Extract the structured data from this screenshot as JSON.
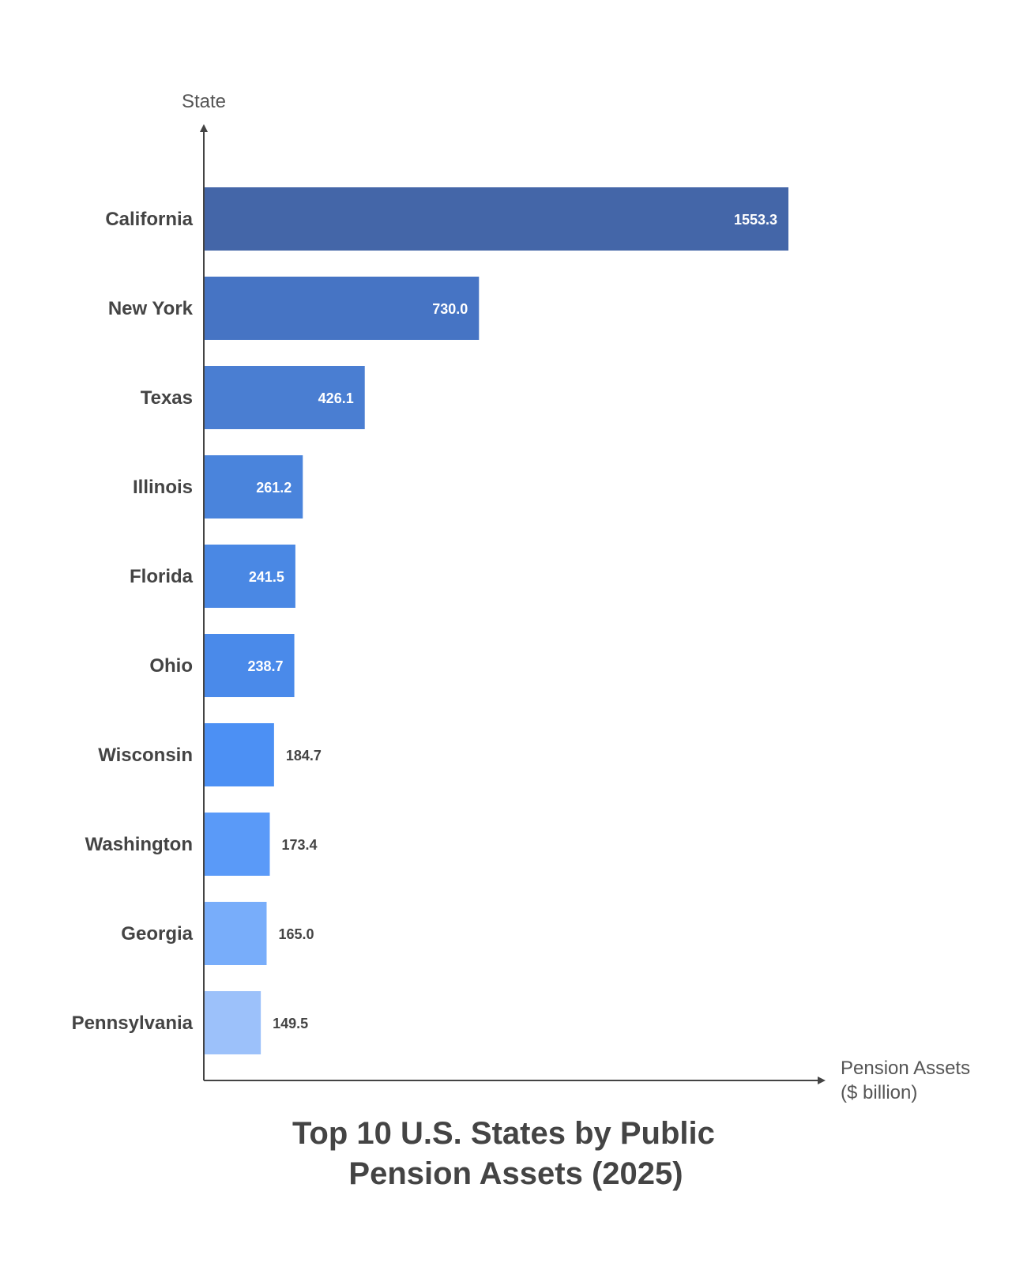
{
  "chart_data": {
    "type": "bar",
    "orientation": "horizontal",
    "title": "Top 10 U.S. States by Public Pension Assets (2025)",
    "title_lines": [
      "Top 10 U.S. States by Public",
      "Pension Assets (2025)"
    ],
    "ylabel": "State",
    "xlabel": "Pension Assets ($ billion)",
    "xlabel_lines": [
      "Pension Assets",
      "($ billion)"
    ],
    "categories": [
      "California",
      "New York",
      "Texas",
      "Illinois",
      "Florida",
      "Ohio",
      "Wisconsin",
      "Washington",
      "Georgia",
      "Pennsylvania"
    ],
    "values": [
      1553.3,
      730.0,
      426.1,
      261.2,
      241.5,
      238.7,
      184.7,
      173.4,
      165.0,
      149.5
    ],
    "value_labels": [
      "1553.3",
      "730.0",
      "426.1",
      "261.2",
      "241.5",
      "238.7",
      "184.7",
      "173.4",
      "165.0",
      "149.5"
    ],
    "bar_colors": [
      "#4466a8",
      "#4674c4",
      "#4a7ed2",
      "#4a84dc",
      "#4a88e4",
      "#4a8aea",
      "#4c90f4",
      "#5a9af8",
      "#78adfa",
      "#9cc1fa"
    ],
    "xlim": [
      0,
      1553.3
    ],
    "grid": false,
    "legend": "none"
  }
}
